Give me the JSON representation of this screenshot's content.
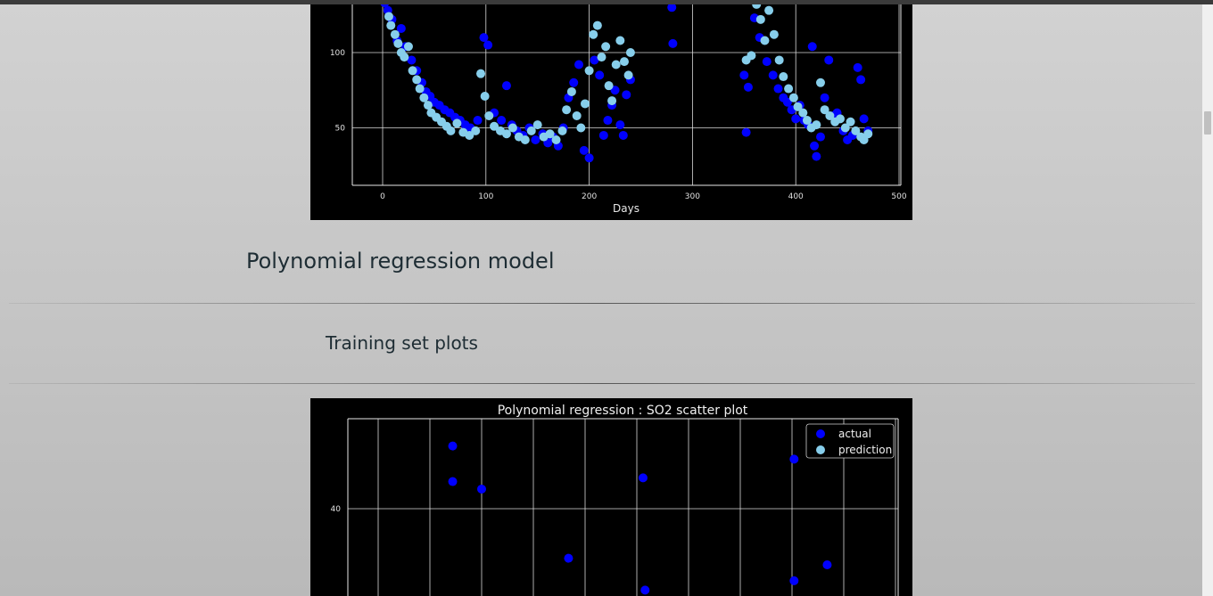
{
  "page": {
    "model_title": "Polynomial regression model",
    "section_title": "Training set plots"
  },
  "colors": {
    "actual": "#0000ff",
    "prediction": "#87ceeb",
    "plot_bg": "#000000",
    "grid": "#d8d8d8",
    "page_bg_top": "#d2d2d2",
    "page_bg_bottom": "#b9b9b9",
    "heading_text": "#1e2d34"
  },
  "chart_data": [
    {
      "type": "scatter",
      "title": "",
      "xlabel": "Days",
      "ylabel": "",
      "xlim": [
        -29,
        502
      ],
      "ylim_visible": [
        13,
        135
      ],
      "xticks": [
        0,
        100,
        200,
        300,
        400,
        500
      ],
      "yticks": [
        50,
        100
      ],
      "grid": true,
      "series": [
        {
          "role": "actual",
          "points": [
            [
              2,
              133
            ],
            [
              5,
              128
            ],
            [
              9,
              122
            ],
            [
              14,
              108
            ],
            [
              18,
              116
            ],
            [
              22,
              104
            ],
            [
              28,
              95
            ],
            [
              33,
              88
            ],
            [
              38,
              80
            ],
            [
              42,
              74
            ],
            [
              46,
              71
            ],
            [
              50,
              67
            ],
            [
              55,
              65
            ],
            [
              60,
              62
            ],
            [
              65,
              60
            ],
            [
              70,
              57
            ],
            [
              75,
              55
            ],
            [
              80,
              52
            ],
            [
              85,
              50
            ],
            [
              92,
              55
            ],
            [
              98,
              110
            ],
            [
              102,
              105
            ],
            [
              108,
              60
            ],
            [
              115,
              55
            ],
            [
              120,
              78
            ],
            [
              125,
              52
            ],
            [
              130,
              48
            ],
            [
              136,
              45
            ],
            [
              142,
              50
            ],
            [
              148,
              42
            ],
            [
              155,
              46
            ],
            [
              160,
              40
            ],
            [
              165,
              44
            ],
            [
              170,
              38
            ],
            [
              175,
              50
            ],
            [
              180,
              70
            ],
            [
              185,
              80
            ],
            [
              190,
              92
            ],
            [
              195,
              35
            ],
            [
              200,
              30
            ],
            [
              205,
              95
            ],
            [
              210,
              85
            ],
            [
              214,
              45
            ],
            [
              218,
              55
            ],
            [
              222,
              65
            ],
            [
              225,
              75
            ],
            [
              230,
              52
            ],
            [
              233,
              45
            ],
            [
              236,
              72
            ],
            [
              240,
              82
            ],
            [
              280,
              130
            ],
            [
              281,
              106
            ],
            [
              350,
              85
            ],
            [
              352,
              47
            ],
            [
              354,
              77
            ],
            [
              360,
              123
            ],
            [
              365,
              110
            ],
            [
              372,
              94
            ],
            [
              378,
              85
            ],
            [
              383,
              76
            ],
            [
              388,
              70
            ],
            [
              392,
              67
            ],
            [
              396,
              62
            ],
            [
              400,
              56
            ],
            [
              404,
              65
            ],
            [
              408,
              55
            ],
            [
              412,
              52
            ],
            [
              416,
              104
            ],
            [
              418,
              38
            ],
            [
              420,
              31
            ],
            [
              424,
              44
            ],
            [
              428,
              70
            ],
            [
              432,
              95
            ],
            [
              436,
              58
            ],
            [
              440,
              60
            ],
            [
              446,
              48
            ],
            [
              450,
              42
            ],
            [
              455,
              45
            ],
            [
              460,
              90
            ],
            [
              463,
              82
            ],
            [
              466,
              56
            ],
            [
              470,
              48
            ]
          ]
        },
        {
          "role": "prediction",
          "points": [
            [
              6,
              124
            ],
            [
              8,
              118
            ],
            [
              12,
              112
            ],
            [
              15,
              106
            ],
            [
              18,
              100
            ],
            [
              21,
              97
            ],
            [
              25,
              104
            ],
            [
              29,
              88
            ],
            [
              33,
              82
            ],
            [
              36,
              76
            ],
            [
              40,
              70
            ],
            [
              44,
              65
            ],
            [
              47,
              60
            ],
            [
              52,
              57
            ],
            [
              57,
              54
            ],
            [
              62,
              51
            ],
            [
              66,
              48
            ],
            [
              72,
              53
            ],
            [
              78,
              47
            ],
            [
              84,
              45
            ],
            [
              90,
              48
            ],
            [
              95,
              86
            ],
            [
              99,
              71
            ],
            [
              103,
              58
            ],
            [
              108,
              51
            ],
            [
              114,
              48
            ],
            [
              120,
              46
            ],
            [
              126,
              50
            ],
            [
              132,
              44
            ],
            [
              138,
              42
            ],
            [
              144,
              48
            ],
            [
              150,
              52
            ],
            [
              156,
              44
            ],
            [
              162,
              46
            ],
            [
              168,
              42
            ],
            [
              174,
              48
            ],
            [
              178,
              62
            ],
            [
              183,
              74
            ],
            [
              188,
              58
            ],
            [
              192,
              50
            ],
            [
              196,
              66
            ],
            [
              200,
              88
            ],
            [
              204,
              112
            ],
            [
              208,
              118
            ],
            [
              212,
              97
            ],
            [
              216,
              104
            ],
            [
              219,
              78
            ],
            [
              222,
              68
            ],
            [
              226,
              92
            ],
            [
              230,
              108
            ],
            [
              234,
              94
            ],
            [
              238,
              85
            ],
            [
              240,
              100
            ],
            [
              352,
              95
            ],
            [
              357,
              98
            ],
            [
              362,
              132
            ],
            [
              366,
              122
            ],
            [
              370,
              108
            ],
            [
              374,
              128
            ],
            [
              379,
              112
            ],
            [
              384,
              95
            ],
            [
              388,
              84
            ],
            [
              393,
              76
            ],
            [
              398,
              70
            ],
            [
              402,
              64
            ],
            [
              407,
              60
            ],
            [
              411,
              55
            ],
            [
              415,
              50
            ],
            [
              420,
              52
            ],
            [
              424,
              80
            ],
            [
              428,
              62
            ],
            [
              433,
              58
            ],
            [
              438,
              54
            ],
            [
              443,
              56
            ],
            [
              448,
              50
            ],
            [
              453,
              54
            ],
            [
              458,
              48
            ],
            [
              463,
              44
            ],
            [
              466,
              42
            ],
            [
              470,
              46
            ]
          ]
        }
      ]
    },
    {
      "type": "scatter",
      "title": "Polynomial regression : SO2 scatter plot",
      "xlabel": "",
      "ylabel": "",
      "xlim": [
        -30,
        502
      ],
      "ylim_visible": [
        31.2,
        50.1
      ],
      "yticks": [
        40
      ],
      "grid": true,
      "legend": {
        "position": "top-right",
        "entries": [
          "actual",
          "prediction"
        ]
      },
      "series": [
        {
          "role": "actual",
          "points": [
            [
              72,
              46.7
            ],
            [
              72,
              42.9
            ],
            [
              100,
              42.1
            ],
            [
              184,
              34.7
            ],
            [
              256,
              43.3
            ],
            [
              258,
              31.3
            ],
            [
              402,
              45.3
            ],
            [
              434,
              34.0
            ],
            [
              402,
              32.3
            ]
          ]
        }
      ]
    }
  ]
}
